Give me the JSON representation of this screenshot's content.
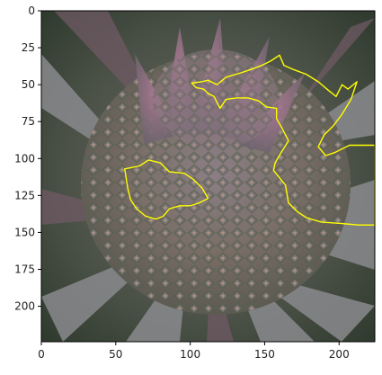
{
  "image_description": "",
  "axes": {
    "x_range": [
      0,
      224
    ],
    "y_range": [
      0,
      224
    ],
    "x_ticks": [
      "0",
      "50",
      "100",
      "150",
      "200"
    ],
    "y_ticks": [
      "0",
      "25",
      "50",
      "75",
      "100",
      "125",
      "150",
      "175",
      "200"
    ]
  },
  "overlay": {
    "contour_color": "#ffff00",
    "regions": [
      {
        "name": "upper-right-region",
        "points": [
          [
            101,
            49
          ],
          [
            108,
            48
          ],
          [
            112,
            47
          ],
          [
            118,
            50
          ],
          [
            124,
            45
          ],
          [
            134,
            42
          ],
          [
            140,
            40
          ],
          [
            148,
            37
          ],
          [
            154,
            34
          ],
          [
            160,
            30
          ],
          [
            163,
            37
          ],
          [
            170,
            40
          ],
          [
            178,
            43
          ],
          [
            186,
            48
          ],
          [
            193,
            54
          ],
          [
            198,
            58
          ],
          [
            202,
            50
          ],
          [
            206,
            53
          ],
          [
            212,
            48
          ],
          [
            208,
            60
          ],
          [
            202,
            70
          ],
          [
            196,
            78
          ],
          [
            190,
            84
          ],
          [
            186,
            92
          ],
          [
            191,
            98
          ],
          [
            197,
            96
          ],
          [
            201,
            94
          ],
          [
            207,
            91
          ],
          [
            216,
            91
          ],
          [
            224,
            91
          ],
          [
            224,
            145
          ],
          [
            213,
            145
          ],
          [
            202,
            144
          ],
          [
            188,
            143
          ],
          [
            178,
            140
          ],
          [
            172,
            136
          ],
          [
            166,
            130
          ],
          [
            164,
            118
          ],
          [
            160,
            113
          ],
          [
            156,
            108
          ],
          [
            157,
            103
          ],
          [
            161,
            96
          ],
          [
            166,
            88
          ],
          [
            162,
            80
          ],
          [
            158,
            73
          ],
          [
            158,
            66
          ],
          [
            151,
            65
          ],
          [
            146,
            61
          ],
          [
            139,
            59
          ],
          [
            131,
            59
          ],
          [
            124,
            60
          ],
          [
            120,
            66
          ],
          [
            116,
            58
          ],
          [
            112,
            56
          ],
          [
            109,
            53
          ],
          [
            104,
            52
          ]
        ]
      },
      {
        "name": "left-middle-region",
        "points": [
          [
            56,
            107
          ],
          [
            66,
            105
          ],
          [
            72,
            101
          ],
          [
            80,
            103
          ],
          [
            86,
            109
          ],
          [
            96,
            110
          ],
          [
            102,
            114
          ],
          [
            108,
            120
          ],
          [
            112,
            127
          ],
          [
            106,
            130
          ],
          [
            100,
            132
          ],
          [
            93,
            132
          ],
          [
            86,
            134
          ],
          [
            82,
            139
          ],
          [
            77,
            141
          ],
          [
            70,
            139
          ],
          [
            64,
            134
          ],
          [
            60,
            128
          ],
          [
            58,
            120
          ]
        ]
      }
    ]
  }
}
